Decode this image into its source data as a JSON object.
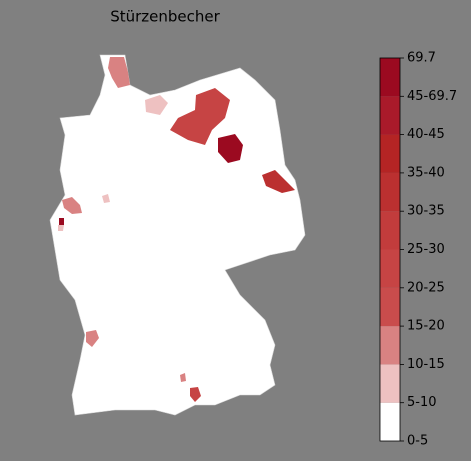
{
  "title": "Stürzenbecher",
  "colorbar": {
    "ticks": [
      "0-5",
      "5-10",
      "10-15",
      "15-20",
      "20-25",
      "25-30",
      "30-35",
      "35-40",
      "40-45",
      "45-69.7",
      "69.7"
    ],
    "colors": [
      "#ffffff",
      "#eec1c1",
      "#d98282",
      "#c94c4c",
      "#c64444",
      "#c23c3c",
      "#bb3030",
      "#b42424",
      "#a91a2a",
      "#9b0a20"
    ]
  }
}
